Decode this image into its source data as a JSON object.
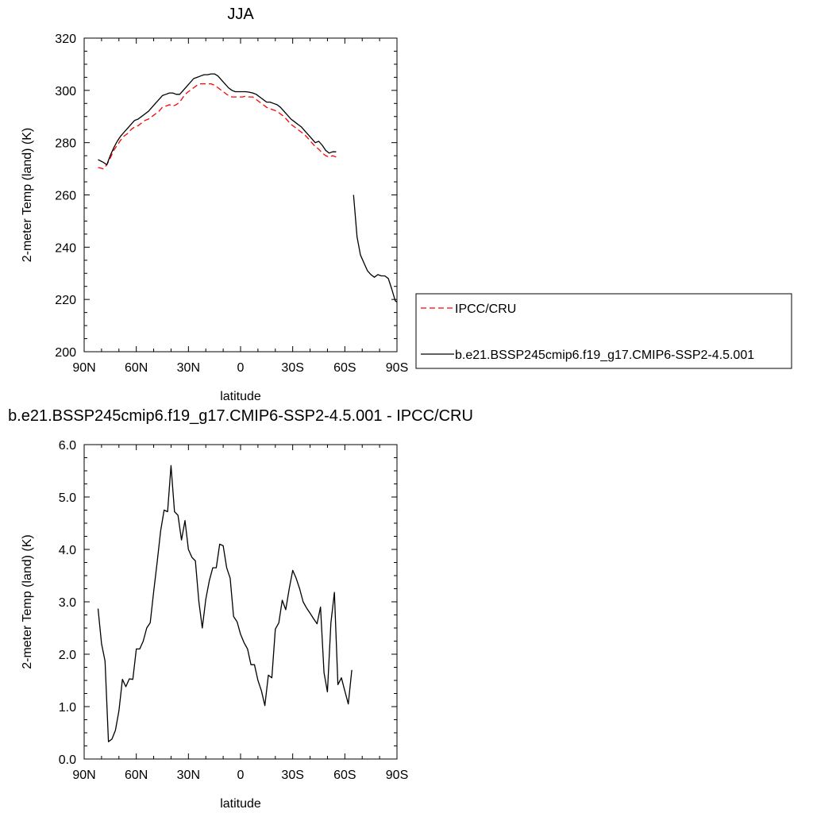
{
  "chart_data": [
    {
      "type": "line",
      "title": "JJA",
      "xlabel": "latitude",
      "ylabel": "2-meter Temp (land) (K)",
      "xlim": [
        90,
        -90
      ],
      "ylim": [
        200,
        320
      ],
      "x_ticks": [
        90,
        60,
        30,
        0,
        -30,
        -60,
        -90
      ],
      "x_tick_labels": [
        "90N",
        "60N",
        "30N",
        "0",
        "30S",
        "60S",
        "90S"
      ],
      "y_ticks": [
        200,
        220,
        240,
        260,
        280,
        300,
        320
      ],
      "y_tick_labels": [
        "200",
        "220",
        "240",
        "260",
        "280",
        "300",
        "320"
      ],
      "grid": false,
      "legend_position": "right-outside",
      "series": [
        {
          "name": "IPCC/CRU",
          "color": "#ff0000",
          "dash": "dashed",
          "segments": [
            [
              [
                82,
                270.5
              ],
              [
                79,
                270
              ],
              [
                77,
                271.5
              ],
              [
                75,
                274
              ],
              [
                73,
                277
              ],
              [
                71,
                279
              ],
              [
                69,
                281
              ],
              [
                67,
                282.5
              ],
              [
                65,
                283.5
              ],
              [
                63,
                285
              ],
              [
                61,
                286
              ],
              [
                59,
                286.5
              ],
              [
                57,
                287.5
              ],
              [
                55,
                288.5
              ],
              [
                53,
                289
              ],
              [
                51,
                290
              ],
              [
                49,
                291
              ],
              [
                47,
                292
              ],
              [
                45,
                293.5
              ],
              [
                43,
                294
              ],
              [
                41,
                294.5
              ],
              [
                39,
                294
              ],
              [
                37,
                294.5
              ],
              [
                35,
                295.5
              ],
              [
                33,
                297.5
              ],
              [
                31,
                299
              ],
              [
                29,
                300
              ],
              [
                27,
                301
              ],
              [
                25,
                302
              ],
              [
                23,
                302.5
              ],
              [
                21,
                302.5
              ],
              [
                19,
                302.5
              ],
              [
                17,
                302.5
              ],
              [
                15,
                302
              ],
              [
                13,
                301
              ],
              [
                11,
                300
              ],
              [
                9,
                299
              ],
              [
                7,
                298
              ],
              [
                5,
                297.5
              ],
              [
                3,
                297.5
              ],
              [
                1,
                297.5
              ],
              [
                -1,
                297.5
              ],
              [
                -3,
                297.8
              ],
              [
                -5,
                297.5
              ],
              [
                -7,
                297.5
              ],
              [
                -9,
                296.5
              ],
              [
                -11,
                295.5
              ],
              [
                -13,
                294.5
              ],
              [
                -15,
                293.5
              ],
              [
                -17,
                293
              ],
              [
                -19,
                292.5
              ],
              [
                -21,
                292
              ],
              [
                -23,
                291
              ],
              [
                -25,
                290
              ],
              [
                -27,
                288.5
              ],
              [
                -29,
                287
              ],
              [
                -31,
                286
              ],
              [
                -33,
                285
              ],
              [
                -35,
                284
              ],
              [
                -37,
                283
              ],
              [
                -39,
                281.5
              ],
              [
                -41,
                280
              ],
              [
                -43,
                278.5
              ],
              [
                -45,
                277.5
              ],
              [
                -47,
                276
              ],
              [
                -49,
                275
              ],
              [
                -51,
                274.5
              ],
              [
                -53,
                275
              ],
              [
                -55,
                274.5
              ]
            ]
          ]
        },
        {
          "name": "b.e21.BSSP245cmip6.f19_g17.CMIP6-SSP2-4.5.001",
          "color": "#000000",
          "dash": "solid",
          "segments": [
            [
              [
                82,
                273.5
              ],
              [
                79,
                272.5
              ],
              [
                77,
                271.5
              ],
              [
                75,
                275
              ],
              [
                73,
                278
              ],
              [
                71,
                280.5
              ],
              [
                69,
                282.5
              ],
              [
                67,
                284
              ],
              [
                65,
                285.5
              ],
              [
                63,
                287
              ],
              [
                61,
                288.5
              ],
              [
                59,
                289
              ],
              [
                57,
                290
              ],
              [
                55,
                291
              ],
              [
                53,
                292
              ],
              [
                51,
                293.5
              ],
              [
                49,
                295
              ],
              [
                47,
                296.5
              ],
              [
                45,
                298
              ],
              [
                43,
                298.5
              ],
              [
                41,
                299
              ],
              [
                39,
                299
              ],
              [
                37,
                298.5
              ],
              [
                35,
                298.5
              ],
              [
                33,
                300
              ],
              [
                31,
                301.5
              ],
              [
                29,
                303
              ],
              [
                27,
                304.5
              ],
              [
                25,
                305
              ],
              [
                23,
                305.5
              ],
              [
                21,
                306
              ],
              [
                19,
                306
              ],
              [
                17,
                306.3
              ],
              [
                15,
                306.3
              ],
              [
                13,
                305.5
              ],
              [
                11,
                304
              ],
              [
                9,
                302.5
              ],
              [
                7,
                301
              ],
              [
                5,
                300
              ],
              [
                3,
                299.5
              ],
              [
                1,
                299.5
              ],
              [
                -1,
                299.5
              ],
              [
                -3,
                299.5
              ],
              [
                -5,
                299.3
              ],
              [
                -7,
                299
              ],
              [
                -9,
                298.5
              ],
              [
                -11,
                297.5
              ],
              [
                -13,
                296.5
              ],
              [
                -15,
                295.5
              ],
              [
                -17,
                295.5
              ],
              [
                -19,
                295
              ],
              [
                -21,
                294.5
              ],
              [
                -23,
                293.5
              ],
              [
                -25,
                292
              ],
              [
                -27,
                290.5
              ],
              [
                -29,
                289
              ],
              [
                -31,
                288
              ],
              [
                -33,
                287
              ],
              [
                -35,
                286
              ],
              [
                -37,
                284.5
              ],
              [
                -39,
                283
              ],
              [
                -41,
                281.5
              ],
              [
                -43,
                280
              ],
              [
                -45,
                280.5
              ],
              [
                -47,
                279
              ],
              [
                -49,
                277
              ],
              [
                -51,
                276
              ],
              [
                -53,
                276.5
              ],
              [
                -55,
                276.5
              ]
            ],
            [
              [
                -65,
                260
              ],
              [
                -67,
                244
              ],
              [
                -69,
                237
              ],
              [
                -71,
                234
              ],
              [
                -73,
                231
              ],
              [
                -75,
                229.5
              ],
              [
                -77,
                228.5
              ],
              [
                -79,
                229.5
              ],
              [
                -81,
                229
              ],
              [
                -83,
                229
              ],
              [
                -85,
                228
              ],
              [
                -87,
                224
              ],
              [
                -89,
                219.5
              ],
              [
                -90,
                219
              ]
            ]
          ]
        }
      ]
    },
    {
      "type": "line",
      "title": "b.e21.BSSP245cmip6.f19_g17.CMIP6-SSP2-4.5.001 - IPCC/CRU",
      "xlabel": "latitude",
      "ylabel": "2-meter Temp (land) (K)",
      "xlim": [
        90,
        -90
      ],
      "ylim": [
        0,
        6
      ],
      "x_ticks": [
        90,
        60,
        30,
        0,
        -30,
        -60,
        -90
      ],
      "x_tick_labels": [
        "90N",
        "60N",
        "30N",
        "0",
        "30S",
        "60S",
        "90S"
      ],
      "y_ticks": [
        0,
        1,
        2,
        3,
        4,
        5,
        6
      ],
      "y_tick_labels": [
        "0.0",
        "1.0",
        "2.0",
        "3.0",
        "4.0",
        "5.0",
        "6.0"
      ],
      "grid": false,
      "series": [
        {
          "color": "#000000",
          "dash": "solid",
          "segments": [
            [
              [
                82,
                2.87
              ],
              [
                80,
                2.2
              ],
              [
                78,
                1.87
              ],
              [
                76,
                0.33
              ],
              [
                74,
                0.38
              ],
              [
                72,
                0.55
              ],
              [
                70,
                0.92
              ],
              [
                68,
                1.52
              ],
              [
                66,
                1.38
              ],
              [
                64,
                1.53
              ],
              [
                62,
                1.52
              ],
              [
                60,
                2.1
              ],
              [
                58,
                2.1
              ],
              [
                56,
                2.25
              ],
              [
                54,
                2.5
              ],
              [
                52,
                2.6
              ],
              [
                50,
                3.2
              ],
              [
                48,
                3.75
              ],
              [
                46,
                4.35
              ],
              [
                44,
                4.75
              ],
              [
                42,
                4.72
              ],
              [
                40,
                5.6
              ],
              [
                38,
                4.72
              ],
              [
                36,
                4.65
              ],
              [
                34,
                4.18
              ],
              [
                32,
                4.55
              ],
              [
                30,
                4.0
              ],
              [
                28,
                3.85
              ],
              [
                26,
                3.78
              ],
              [
                24,
                3.0
              ],
              [
                22,
                2.5
              ],
              [
                20,
                3.05
              ],
              [
                18,
                3.4
              ],
              [
                16,
                3.65
              ],
              [
                14,
                3.65
              ],
              [
                12,
                4.1
              ],
              [
                10,
                4.07
              ],
              [
                8,
                3.65
              ],
              [
                6,
                3.45
              ],
              [
                4,
                2.72
              ],
              [
                2,
                2.62
              ],
              [
                0,
                2.38
              ],
              [
                -2,
                2.22
              ],
              [
                -4,
                2.1
              ],
              [
                -6,
                1.8
              ],
              [
                -8,
                1.8
              ],
              [
                -10,
                1.5
              ],
              [
                -12,
                1.3
              ],
              [
                -14,
                1.02
              ],
              [
                -16,
                1.6
              ],
              [
                -18,
                1.55
              ],
              [
                -20,
                2.48
              ],
              [
                -22,
                2.6
              ],
              [
                -24,
                3.03
              ],
              [
                -26,
                2.85
              ],
              [
                -28,
                3.25
              ],
              [
                -30,
                3.6
              ],
              [
                -32,
                3.45
              ],
              [
                -34,
                3.25
              ],
              [
                -36,
                3.0
              ],
              [
                -38,
                2.88
              ],
              [
                -40,
                2.78
              ],
              [
                -42,
                2.68
              ],
              [
                -44,
                2.58
              ],
              [
                -46,
                2.9
              ],
              [
                -48,
                1.65
              ],
              [
                -50,
                1.28
              ],
              [
                -52,
                2.6
              ],
              [
                -54,
                3.18
              ],
              [
                -56,
                1.42
              ],
              [
                -58,
                1.55
              ],
              [
                -60,
                1.3
              ],
              [
                -62,
                1.05
              ],
              [
                -64,
                1.7
              ]
            ]
          ]
        }
      ]
    }
  ]
}
